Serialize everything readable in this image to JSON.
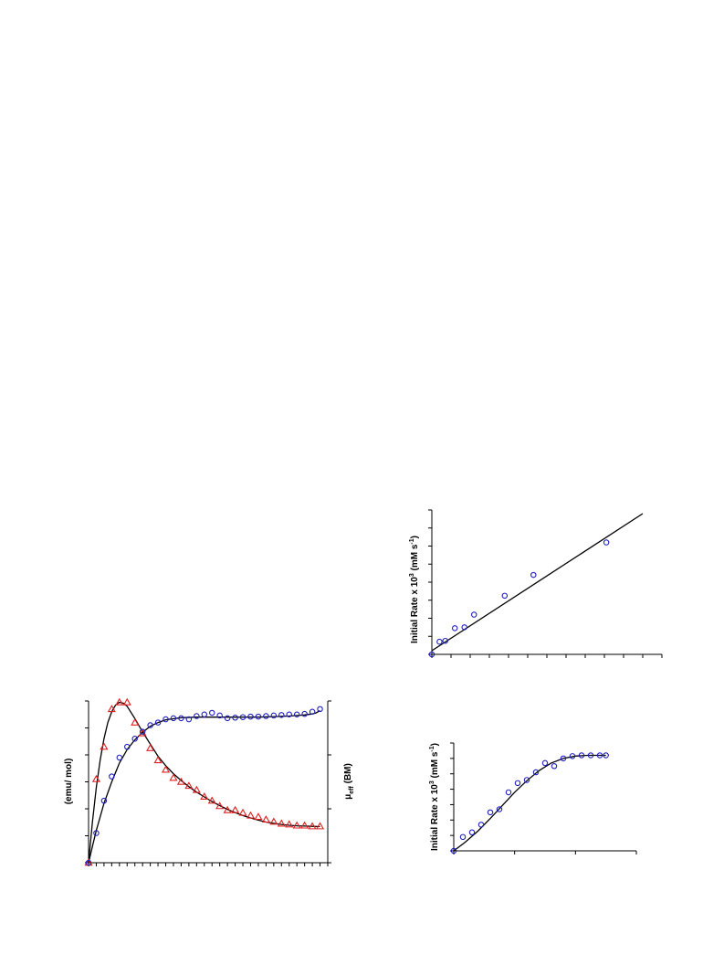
{
  "chart_data": [
    {
      "id": "magnetic",
      "type": "scatter",
      "ylabel_left": "(emu/ mol)",
      "ylabel_right": {
        "base": "μ",
        "sub": "eff",
        "suffix": " (BM)"
      },
      "xlim": [
        0,
        31
      ],
      "ylim_left": [
        0,
        6
      ],
      "ylim_right": [
        0,
        3
      ],
      "x_ticks": 31,
      "y_ticks_left": 6,
      "y_ticks_right": 3,
      "series": [
        {
          "marker": "triangle",
          "color": "#e02020",
          "axis": "left",
          "x": [
            0,
            1,
            2,
            3,
            4,
            5,
            6,
            7,
            8,
            9,
            10,
            11,
            12,
            13,
            14,
            15,
            16,
            17,
            18,
            19,
            20,
            21,
            22,
            23,
            24,
            25,
            26,
            27,
            28,
            29,
            30
          ],
          "y": [
            0,
            3.1,
            4.3,
            5.7,
            5.95,
            5.95,
            5.2,
            4.8,
            4.25,
            3.8,
            3.45,
            3.15,
            3.0,
            2.85,
            2.7,
            2.45,
            2.3,
            2.1,
            1.95,
            1.95,
            1.85,
            1.75,
            1.7,
            1.6,
            1.52,
            1.45,
            1.42,
            1.38,
            1.38,
            1.35,
            1.35
          ]
        },
        {
          "marker": "circle",
          "color": "#2020c0",
          "axis": "right",
          "x": [
            0,
            1,
            2,
            3,
            4,
            5,
            6,
            7,
            8,
            9,
            10,
            11,
            12,
            13,
            14,
            15,
            16,
            17,
            18,
            19,
            20,
            21,
            22,
            23,
            24,
            25,
            26,
            27,
            28,
            29,
            30
          ],
          "y": [
            0,
            0.55,
            1.15,
            1.6,
            1.95,
            2.15,
            2.3,
            2.43,
            2.55,
            2.6,
            2.66,
            2.68,
            2.68,
            2.66,
            2.72,
            2.75,
            2.78,
            2.73,
            2.68,
            2.69,
            2.7,
            2.71,
            2.71,
            2.72,
            2.73,
            2.74,
            2.75,
            2.75,
            2.76,
            2.8,
            2.85
          ]
        }
      ],
      "fits": [
        {
          "axis": "left",
          "x": [
            0,
            0.5,
            1,
            1.5,
            2,
            2.5,
            3,
            3.5,
            4,
            4.5,
            5,
            6,
            7,
            8,
            9,
            10,
            11,
            12,
            13,
            14,
            15,
            16,
            17,
            18,
            19,
            20,
            21,
            22,
            23,
            24,
            25,
            26,
            27,
            28,
            29,
            30
          ],
          "y": [
            0,
            1.5,
            2.8,
            3.8,
            4.6,
            5.2,
            5.6,
            5.85,
            5.95,
            5.92,
            5.8,
            5.35,
            4.85,
            4.4,
            3.95,
            3.6,
            3.3,
            3.05,
            2.82,
            2.62,
            2.44,
            2.27,
            2.12,
            1.98,
            1.86,
            1.75,
            1.66,
            1.58,
            1.51,
            1.46,
            1.42,
            1.39,
            1.37,
            1.36,
            1.35,
            1.34
          ]
        },
        {
          "axis": "right",
          "x": [
            0,
            0.5,
            1,
            1.5,
            2,
            3,
            4,
            5,
            6,
            7,
            8,
            9,
            10,
            12,
            14,
            16,
            18,
            20,
            22,
            24,
            26,
            27,
            28,
            29,
            29.5,
            30
          ],
          "y": [
            0,
            0.3,
            0.6,
            0.85,
            1.1,
            1.5,
            1.85,
            2.1,
            2.28,
            2.42,
            2.53,
            2.6,
            2.65,
            2.69,
            2.7,
            2.7,
            2.7,
            2.7,
            2.7,
            2.71,
            2.72,
            2.73,
            2.74,
            2.76,
            2.78,
            2.82
          ]
        }
      ]
    },
    {
      "id": "rate-linear",
      "type": "scatter",
      "ylabel": {
        "pre": "Initial Rate x 10",
        "sup1": "3",
        "mid": " (mM s",
        "sup2": "-1",
        "post": ")"
      },
      "xlim": [
        0,
        12
      ],
      "ylim": [
        0,
        8
      ],
      "x_ticks": 12,
      "y_ticks": 8,
      "series": [
        {
          "marker": "circle",
          "color": "#2020c0",
          "x": [
            0,
            0.4,
            0.7,
            1.2,
            1.7,
            2.2,
            3.8,
            5.3,
            9.1
          ],
          "y": [
            0,
            0.7,
            0.75,
            1.45,
            1.5,
            2.2,
            3.25,
            4.4,
            6.2
          ]
        }
      ],
      "fits": [
        {
          "x": [
            0,
            11
          ],
          "y": [
            0.2,
            7.8
          ]
        }
      ]
    },
    {
      "id": "rate-sigmoid",
      "type": "scatter",
      "ylabel": {
        "pre": "Initial Rate x 10",
        "sup1": "3",
        "mid": " (mM s",
        "sup2": "-1",
        "post": ")"
      },
      "xlim": [
        0,
        3
      ],
      "ylim": [
        0,
        7
      ],
      "x_ticks": 3,
      "y_ticks": 7,
      "series": [
        {
          "marker": "circle",
          "color": "#2020c0",
          "x": [
            0,
            0.15,
            0.3,
            0.45,
            0.6,
            0.75,
            0.9,
            1.05,
            1.2,
            1.35,
            1.5,
            1.65,
            1.8,
            1.95,
            2.1,
            2.25,
            2.4,
            2.5
          ],
          "y": [
            0,
            0.9,
            1.2,
            1.7,
            2.5,
            2.7,
            3.8,
            4.4,
            4.6,
            5.1,
            5.7,
            5.5,
            6.0,
            6.15,
            6.2,
            6.2,
            6.2,
            6.2
          ]
        }
      ],
      "fits": [
        {
          "x": [
            0,
            0.2,
            0.4,
            0.6,
            0.8,
            1.0,
            1.2,
            1.4,
            1.6,
            1.8,
            2.0,
            2.2,
            2.4,
            2.5
          ],
          "y": [
            0,
            0.6,
            1.3,
            2.1,
            2.95,
            3.8,
            4.55,
            5.2,
            5.7,
            6.0,
            6.15,
            6.2,
            6.2,
            6.2
          ]
        }
      ]
    }
  ]
}
